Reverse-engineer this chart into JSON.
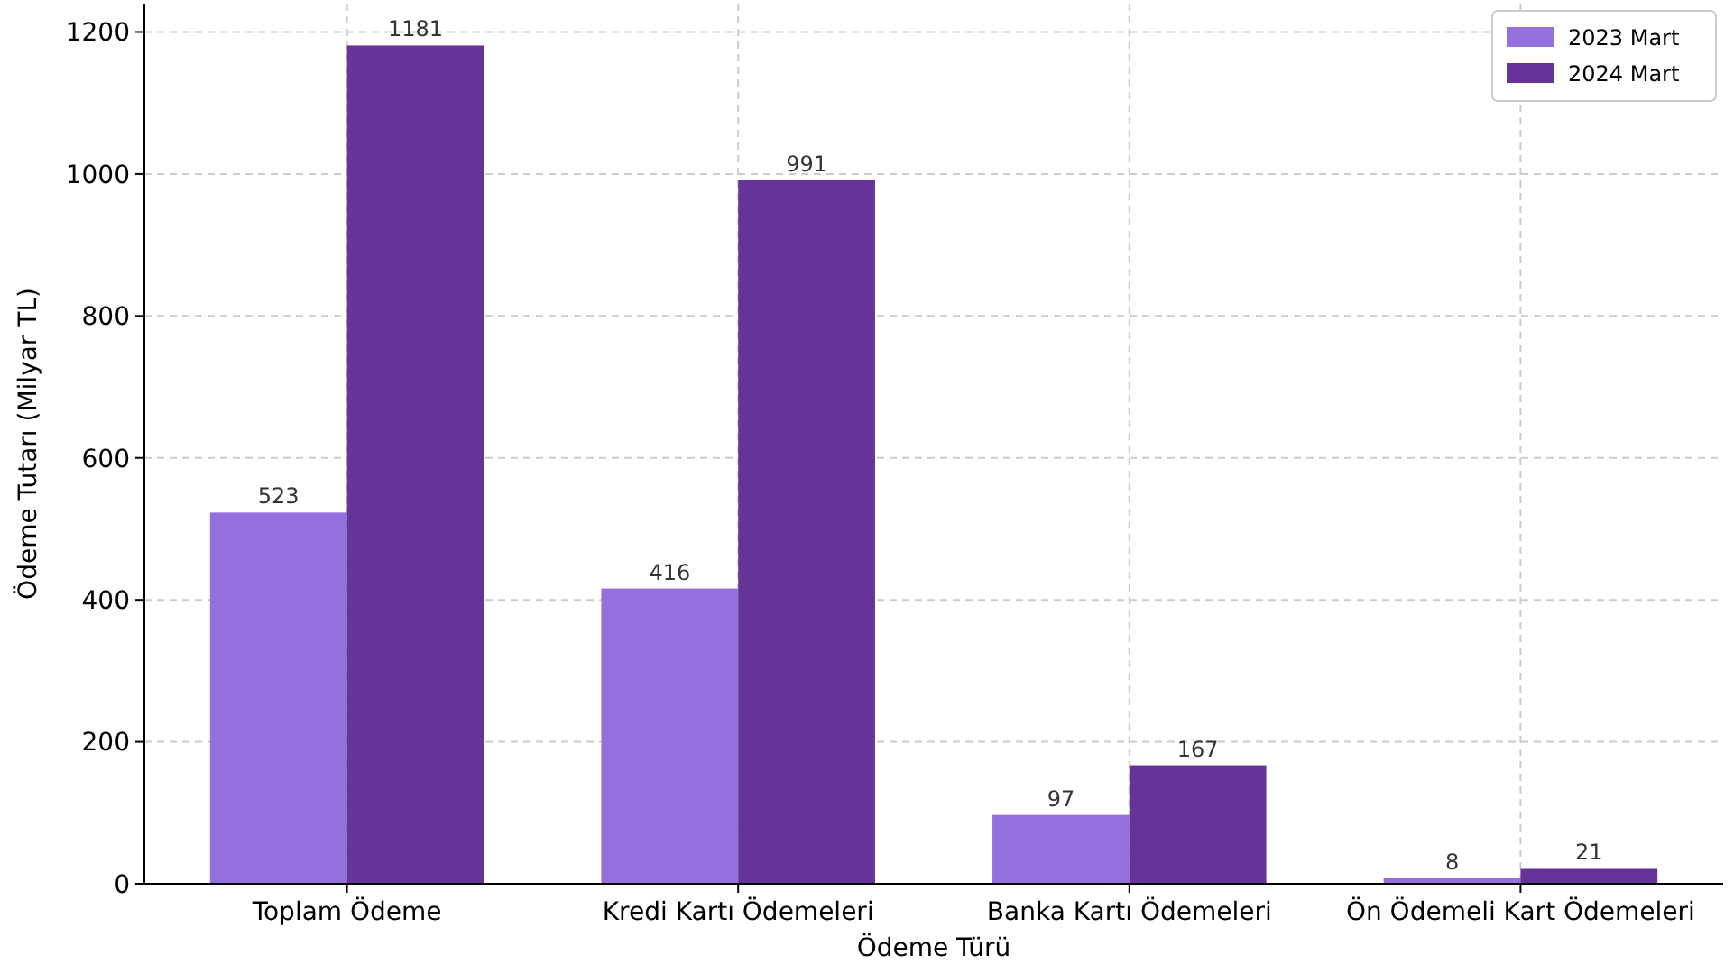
{
  "chart_data": {
    "type": "bar",
    "xlabel": "Ödeme Türü",
    "ylabel": "Ödeme Tutarı (Milyar TL)",
    "categories": [
      "Toplam Ödeme",
      "Kredi Kartı Ödemeleri",
      "Banka Kartı Ödemeleri",
      "Ön Ödemeli Kart Ödemeleri"
    ],
    "series": [
      {
        "name": "2023 Mart",
        "color": "#9370db",
        "values": [
          523,
          416,
          97,
          8
        ]
      },
      {
        "name": "2024 Mart",
        "color": "#663399",
        "values": [
          1181,
          991,
          167,
          21
        ]
      }
    ],
    "ylim": [
      0,
      1240
    ],
    "yticks": [
      0,
      200,
      400,
      600,
      800,
      1000,
      1200
    ],
    "grid": true,
    "legend": "top right",
    "data_labels": true
  }
}
